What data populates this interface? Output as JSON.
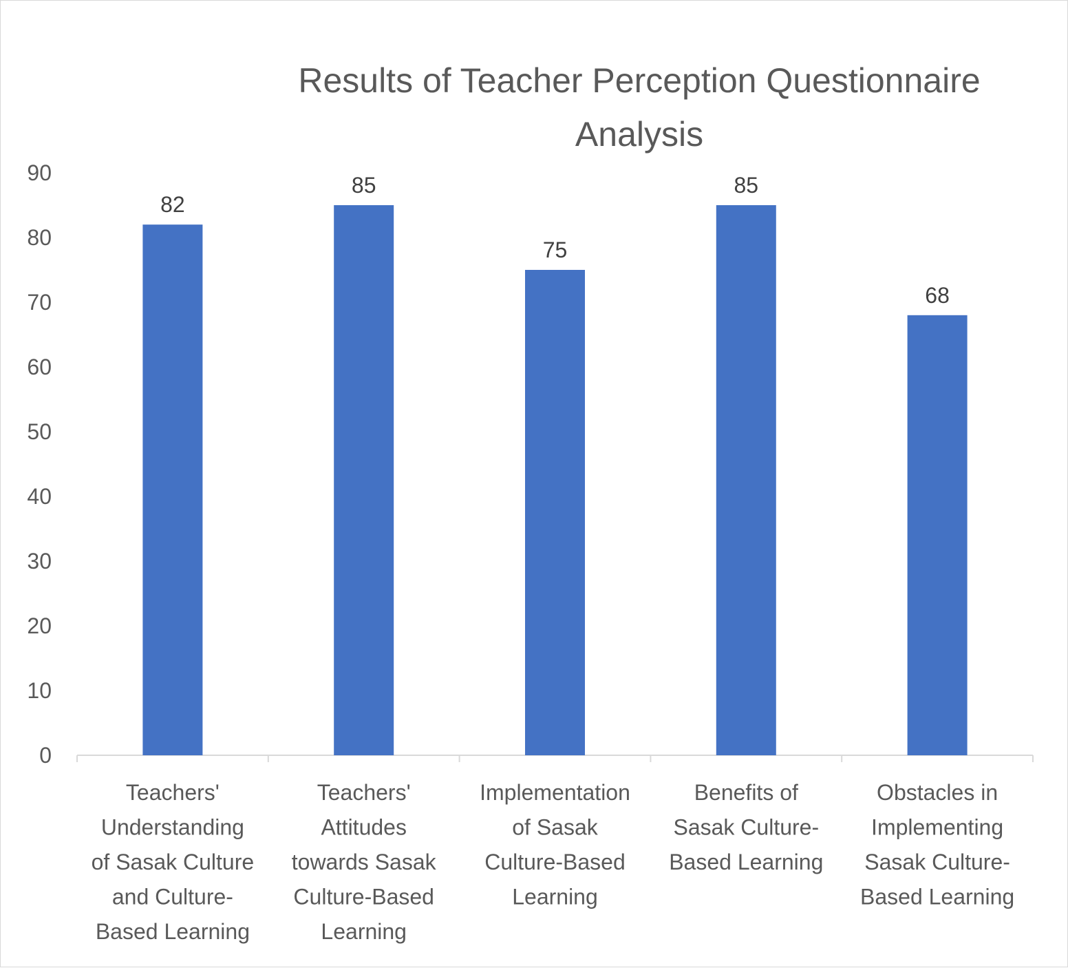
{
  "chart_data": {
    "type": "bar",
    "title": "Results of Teacher Perception Questionnaire Analysis",
    "title_lines": [
      "Results of Teacher Perception Questionnaire",
      "Analysis"
    ],
    "categories": [
      "Teachers' Understanding of Sasak Culture and Culture-Based Learning",
      "Teachers' Attitudes towards Sasak Culture-Based Learning",
      "Implementation of Sasak Culture-Based Learning",
      "Benefits of Sasak Culture-Based Learning",
      "Obstacles in Implementing Sasak Culture-Based Learning"
    ],
    "category_lines": [
      [
        "Teachers'",
        "Understanding",
        "of Sasak Culture",
        "and Culture-",
        "Based Learning"
      ],
      [
        "Teachers'",
        "Attitudes",
        "towards Sasak",
        "Culture-Based",
        "Learning"
      ],
      [
        "Implementation",
        "of Sasak",
        "Culture-Based",
        "Learning"
      ],
      [
        "Benefits of",
        "Sasak Culture-",
        "Based Learning"
      ],
      [
        "Obstacles in",
        "Implementing",
        "Sasak Culture-",
        "Based Learning"
      ]
    ],
    "values": [
      82,
      85,
      75,
      85,
      68
    ],
    "data_labels": [
      "82",
      "85",
      "75",
      "85",
      "68"
    ],
    "yticks": [
      0,
      10,
      20,
      30,
      40,
      50,
      60,
      70,
      80,
      90
    ],
    "ylim": [
      0,
      90
    ],
    "xlabel": "",
    "ylabel": "",
    "grid": false,
    "legend": false,
    "bar_color": "#4472c4"
  }
}
